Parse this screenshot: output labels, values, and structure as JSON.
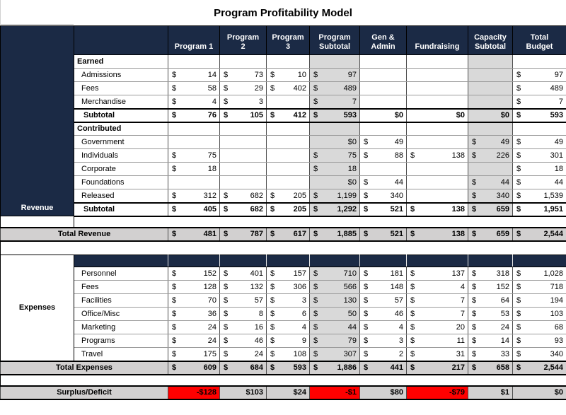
{
  "title": "Program Profitability Model",
  "colors": {
    "header_navy": "#1b2a45",
    "subtotal_column_gray": "#d9d9d9",
    "total_row_gray": "#d2d0d0",
    "deficit_red": "#ff0000"
  },
  "table": {
    "columns": [
      {
        "key": "program-1",
        "label": "Program 1"
      },
      {
        "key": "program-2",
        "label": "Program\n2"
      },
      {
        "key": "program-3",
        "label": "Program\n3"
      },
      {
        "key": "program-subtotal",
        "label": "Program\nSubtotal"
      },
      {
        "key": "gen-admin",
        "label": "Gen &\nAdmin"
      },
      {
        "key": "fundraising",
        "label": "Fundraising"
      },
      {
        "key": "capacity-subtotal",
        "label": "Capacity\nSubtotal"
      },
      {
        "key": "total-budget",
        "label": "Total\nBudget"
      }
    ],
    "revenue": {
      "side_label": "Revenue",
      "gray_cols": [
        3,
        6
      ],
      "rows": [
        {
          "id": "earned",
          "style": "group",
          "label": "Earned",
          "cells": [
            null,
            null,
            null,
            null,
            null,
            null,
            null,
            null
          ]
        },
        {
          "id": "admissions",
          "style": "data",
          "label": "Admissions",
          "cells": [
            {
              "d": "14"
            },
            {
              "d": "73"
            },
            {
              "d": "10"
            },
            {
              "d": "97"
            },
            null,
            null,
            null,
            {
              "d": "97"
            }
          ]
        },
        {
          "id": "fees-earned",
          "style": "data",
          "label": "Fees",
          "cells": [
            {
              "d": "58"
            },
            {
              "d": "29"
            },
            {
              "d": "402"
            },
            {
              "d": "489"
            },
            null,
            null,
            null,
            {
              "d": "489"
            }
          ]
        },
        {
          "id": "merchandise",
          "style": "data",
          "label": "Merchandise",
          "cells": [
            {
              "d": "4"
            },
            {
              "d": "3"
            },
            null,
            {
              "d": "7"
            },
            null,
            null,
            null,
            {
              "d": "7"
            }
          ]
        },
        {
          "id": "earned-subtotal",
          "style": "subtotal",
          "label": "Subtotal",
          "cells": [
            {
              "d": "76"
            },
            {
              "d": "105"
            },
            {
              "d": "412"
            },
            {
              "d": "593"
            },
            {
              "t": "$0"
            },
            {
              "t": "$0"
            },
            {
              "t": "$0"
            },
            {
              "d": "593"
            }
          ]
        },
        {
          "id": "contributed",
          "style": "group",
          "label": "Contributed",
          "cells": [
            null,
            null,
            null,
            null,
            null,
            null,
            null,
            null
          ]
        },
        {
          "id": "government",
          "style": "data",
          "label": "Government",
          "cells": [
            null,
            null,
            null,
            {
              "t": "$0"
            },
            {
              "d": "49"
            },
            null,
            {
              "d": "49"
            },
            {
              "d": "49"
            }
          ]
        },
        {
          "id": "individuals",
          "style": "data",
          "label": "Individuals",
          "cells": [
            {
              "d": "75"
            },
            null,
            null,
            {
              "d": "75"
            },
            {
              "d": "88"
            },
            {
              "d": "138"
            },
            {
              "d": "226"
            },
            {
              "d": "301"
            }
          ]
        },
        {
          "id": "corporate",
          "style": "data",
          "label": "Corporate",
          "cells": [
            {
              "d": "18"
            },
            null,
            null,
            {
              "d": "18"
            },
            null,
            null,
            null,
            {
              "d": "18"
            }
          ]
        },
        {
          "id": "foundations",
          "style": "data",
          "label": "Foundations",
          "cells": [
            null,
            null,
            null,
            {
              "t": "$0"
            },
            {
              "d": "44"
            },
            null,
            {
              "d": "44"
            },
            {
              "d": "44"
            }
          ]
        },
        {
          "id": "released",
          "style": "data",
          "label": "Released",
          "cells": [
            {
              "d": "312"
            },
            {
              "d": "682"
            },
            {
              "d": "205"
            },
            {
              "d": "1,199"
            },
            {
              "d": "340"
            },
            null,
            {
              "d": "340"
            },
            {
              "d": "1,539"
            }
          ]
        },
        {
          "id": "contributed-subtotal",
          "style": "subtotal",
          "label": "Subtotal",
          "cells": [
            {
              "d": "405"
            },
            {
              "d": "682"
            },
            {
              "d": "205"
            },
            {
              "d": "1,292"
            },
            {
              "d": "521"
            },
            {
              "d": "138"
            },
            {
              "d": "659"
            },
            {
              "d": "1,951"
            }
          ]
        }
      ]
    },
    "total_revenue": {
      "id": "total-revenue",
      "label": "Total Revenue",
      "cells": [
        {
          "d": "481"
        },
        {
          "d": "787"
        },
        {
          "d": "617"
        },
        {
          "d": "1,885"
        },
        {
          "d": "521"
        },
        {
          "d": "138"
        },
        {
          "d": "659"
        },
        {
          "d": "2,544"
        }
      ]
    },
    "expenses": {
      "side_label": "Expenses",
      "gray_cols": [
        3
      ],
      "rows": [
        {
          "id": "personnel",
          "style": "data",
          "label": "Personnel",
          "cells": [
            {
              "d": "152"
            },
            {
              "d": "401"
            },
            {
              "d": "157"
            },
            {
              "d": "710"
            },
            {
              "d": "181"
            },
            {
              "d": "137"
            },
            {
              "d": "318"
            },
            {
              "d": "1,028"
            }
          ]
        },
        {
          "id": "fees-expenses",
          "style": "data",
          "label": "Fees",
          "cells": [
            {
              "d": "128"
            },
            {
              "d": "132"
            },
            {
              "d": "306"
            },
            {
              "d": "566"
            },
            {
              "d": "148"
            },
            {
              "d": "4"
            },
            {
              "d": "152"
            },
            {
              "d": "718"
            }
          ]
        },
        {
          "id": "facilities",
          "style": "data",
          "label": "Facilities",
          "cells": [
            {
              "d": "70"
            },
            {
              "d": "57"
            },
            {
              "d": "3"
            },
            {
              "d": "130"
            },
            {
              "d": "57"
            },
            {
              "d": "7"
            },
            {
              "d": "64"
            },
            {
              "d": "194"
            }
          ]
        },
        {
          "id": "office-misc",
          "style": "data",
          "label": "Office/Misc",
          "cells": [
            {
              "d": "36"
            },
            {
              "d": "8"
            },
            {
              "d": "6"
            },
            {
              "d": "50"
            },
            {
              "d": "46"
            },
            {
              "d": "7"
            },
            {
              "d": "53"
            },
            {
              "d": "103"
            }
          ]
        },
        {
          "id": "marketing",
          "style": "data",
          "label": "Marketing",
          "cells": [
            {
              "d": "24"
            },
            {
              "d": "16"
            },
            {
              "d": "4"
            },
            {
              "d": "44"
            },
            {
              "d": "4"
            },
            {
              "d": "20"
            },
            {
              "d": "24"
            },
            {
              "d": "68"
            }
          ]
        },
        {
          "id": "programs",
          "style": "data",
          "label": "Programs",
          "cells": [
            {
              "d": "24"
            },
            {
              "d": "46"
            },
            {
              "d": "9"
            },
            {
              "d": "79"
            },
            {
              "d": "3"
            },
            {
              "d": "11"
            },
            {
              "d": "14"
            },
            {
              "d": "93"
            }
          ]
        },
        {
          "id": "travel",
          "style": "data",
          "label": "Travel",
          "cells": [
            {
              "d": "175"
            },
            {
              "d": "24"
            },
            {
              "d": "108"
            },
            {
              "d": "307"
            },
            {
              "d": "2"
            },
            {
              "d": "31"
            },
            {
              "d": "33"
            },
            {
              "d": "340"
            }
          ]
        }
      ]
    },
    "total_expenses": {
      "id": "total-expenses",
      "label": "Total Expenses",
      "cells": [
        {
          "d": "609"
        },
        {
          "d": "684"
        },
        {
          "d": "593"
        },
        {
          "d": "1,886"
        },
        {
          "d": "441"
        },
        {
          "d": "217"
        },
        {
          "d": "658"
        },
        {
          "d": "2,544"
        }
      ]
    },
    "surplus": {
      "id": "surplus-deficit",
      "label": "Surplus/Deficit",
      "cells": [
        {
          "t": "-$128",
          "red": true
        },
        {
          "t": "$103"
        },
        {
          "t": "$24"
        },
        {
          "t": "-$1",
          "red": true
        },
        {
          "t": "$80"
        },
        {
          "t": "-$79",
          "red": true
        },
        {
          "t": "$1"
        },
        {
          "t": "$0"
        }
      ]
    }
  }
}
